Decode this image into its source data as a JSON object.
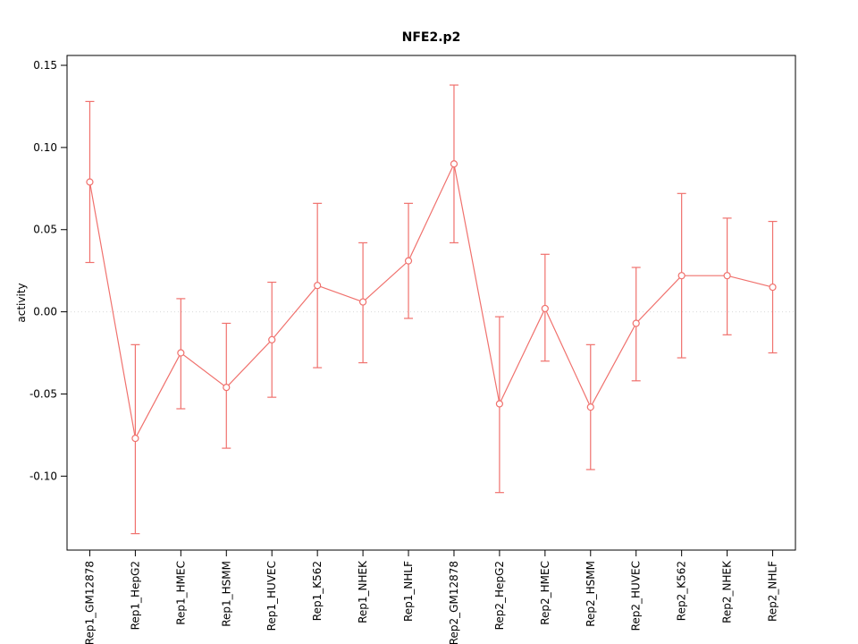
{
  "chart_data": {
    "type": "scatter",
    "title": "NFE2.p2",
    "xlabel": "",
    "ylabel": "activity",
    "ylim": [
      -0.145,
      0.156
    ],
    "yticks": [
      -0.1,
      -0.05,
      0.0,
      0.05,
      0.1,
      0.15
    ],
    "ytick_labels": [
      "-0.10",
      "-0.05",
      "0.00",
      "0.05",
      "0.10",
      "0.15"
    ],
    "grid": "zero-line-dotted",
    "legend_position": "none",
    "categories": [
      "Rep1_GM12878",
      "Rep1_HepG2",
      "Rep1_HMEC",
      "Rep1_HSMM",
      "Rep1_HUVEC",
      "Rep1_K562",
      "Rep1_NHEK",
      "Rep1_NHLF",
      "Rep2_GM12878",
      "Rep2_HepG2",
      "Rep2_HMEC",
      "Rep2_HSMM",
      "Rep2_HUVEC",
      "Rep2_K562",
      "Rep2_NHEK",
      "Rep2_NHLF"
    ],
    "series": [
      {
        "name": "activity",
        "means": [
          0.079,
          -0.077,
          -0.025,
          -0.046,
          -0.017,
          0.016,
          0.006,
          0.031,
          0.09,
          -0.056,
          0.002,
          -0.058,
          -0.007,
          0.022,
          0.022,
          0.015
        ],
        "lower": [
          0.03,
          -0.135,
          -0.059,
          -0.083,
          -0.052,
          -0.034,
          -0.031,
          -0.004,
          0.042,
          -0.11,
          -0.03,
          -0.096,
          -0.042,
          -0.028,
          -0.014,
          -0.025
        ],
        "upper": [
          0.128,
          -0.02,
          0.008,
          -0.007,
          0.018,
          0.066,
          0.042,
          0.066,
          0.138,
          -0.003,
          0.035,
          -0.02,
          0.027,
          0.072,
          0.057,
          0.055
        ]
      }
    ],
    "colors": {
      "series": "#f0716d",
      "zero_line": "#d9d9d9",
      "axis": "#000000"
    },
    "marker": "open-circle",
    "error_bars": true
  }
}
